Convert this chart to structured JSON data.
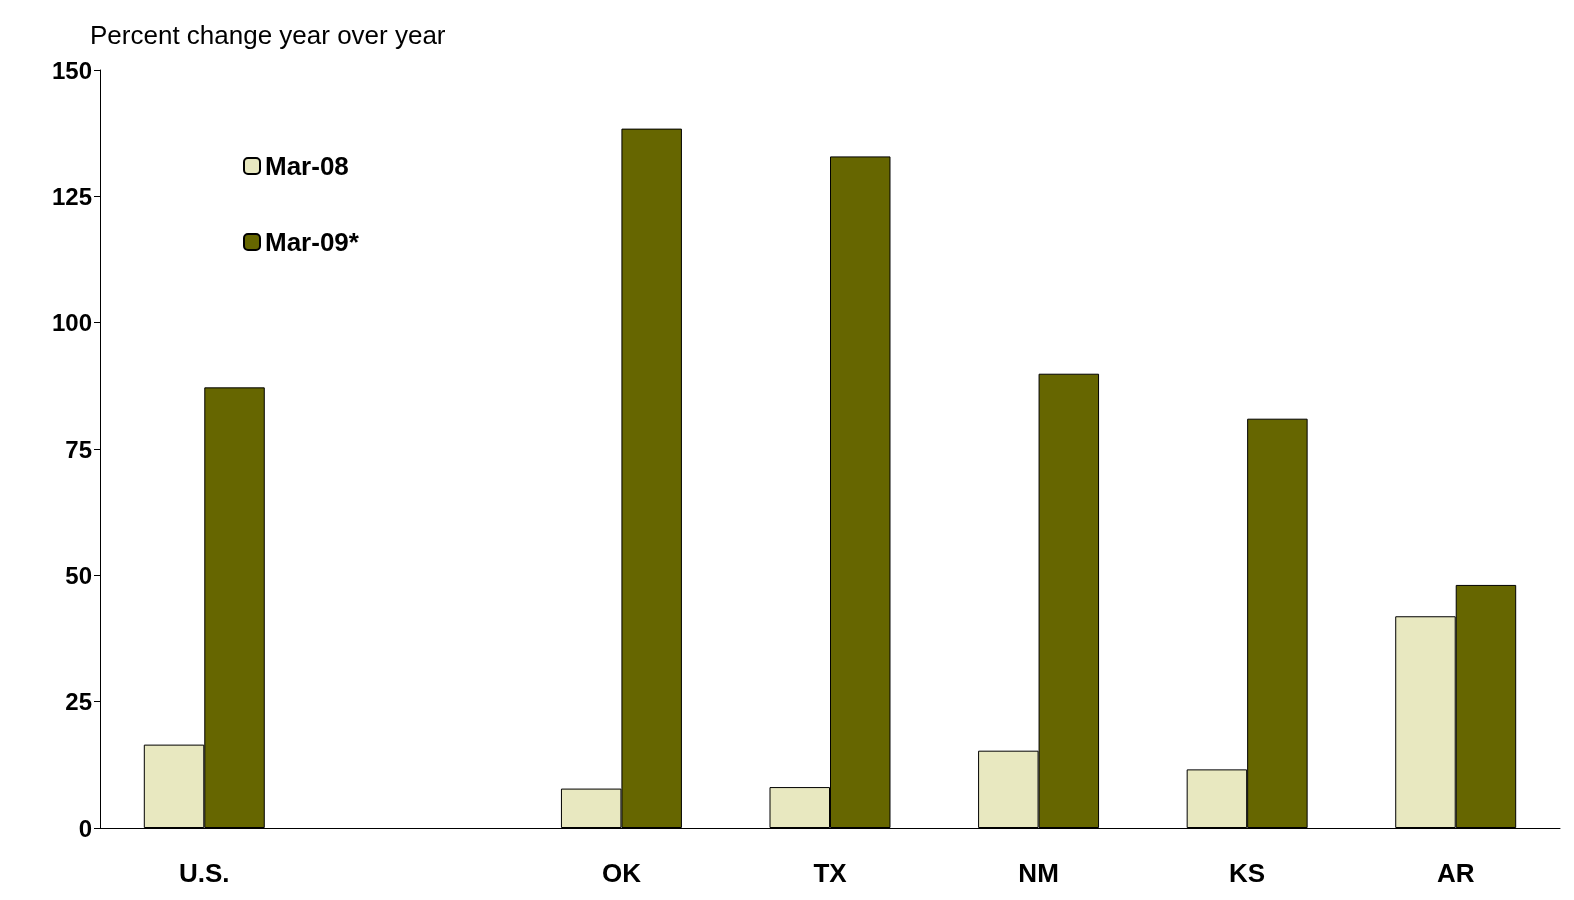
{
  "chart_data": {
    "type": "bar",
    "ylabel": "Percent change year over year",
    "categories": [
      "U.S.",
      null,
      "OK",
      "TX",
      "NM",
      "KS",
      "AR"
    ],
    "series": [
      {
        "name": "Mar-08",
        "color": "#e8e8c0",
        "values": [
          16.5,
          null,
          7.8,
          8.1,
          15.3,
          11.6,
          41.9
        ]
      },
      {
        "name": "Mar-09*",
        "color": "#666600",
        "values": [
          87.2,
          null,
          138.4,
          132.9,
          89.9,
          81.0,
          48.1
        ]
      }
    ],
    "ylim": [
      0,
      150
    ],
    "yticks": [
      0,
      25,
      50,
      75,
      100,
      125,
      150
    ],
    "grid": false,
    "legend": "top left"
  }
}
